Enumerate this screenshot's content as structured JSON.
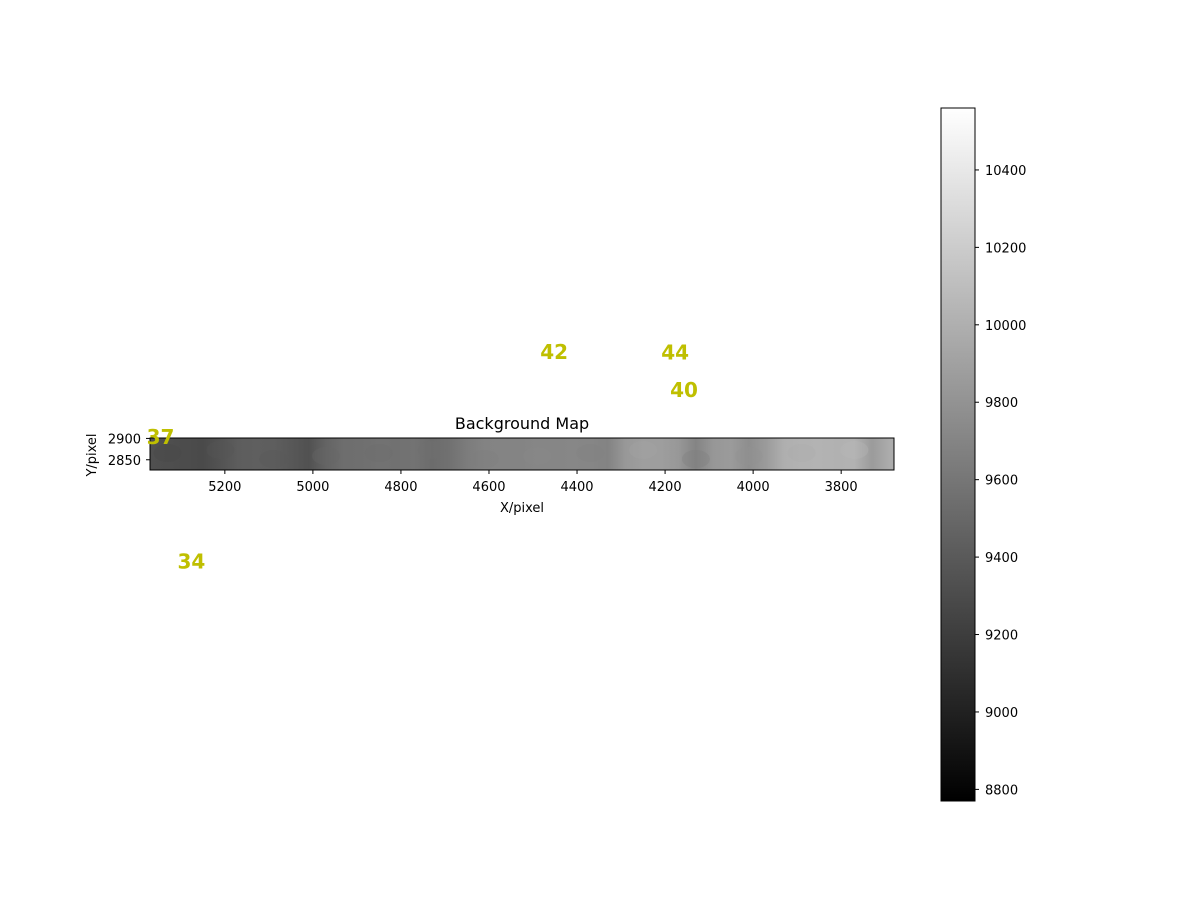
{
  "chart_data": {
    "type": "heatmap",
    "title": "Background Map",
    "xlabel": "X/pixel",
    "ylabel": "Y/pixel",
    "xlim": [
      5370,
      3680
    ],
    "ylim": [
      2826,
      2901
    ],
    "x_ticks": [
      5200,
      5000,
      4800,
      4600,
      4400,
      4200,
      4000,
      3800
    ],
    "y_ticks": [
      2850,
      2900
    ],
    "x_tick_labels": [
      "5200",
      "5000",
      "4800",
      "4600",
      "4400",
      "4200",
      "4000",
      "3800"
    ],
    "y_tick_labels": [
      "2850",
      "2900"
    ],
    "colormap": "gray",
    "background_profile": {
      "x": [
        5370,
        5330,
        5290,
        5250,
        5210,
        5170,
        5130,
        5090,
        5050,
        5010,
        4970,
        4930,
        4890,
        4850,
        4810,
        4770,
        4730,
        4690,
        4650,
        4610,
        4570,
        4530,
        4490,
        4450,
        4410,
        4370,
        4330,
        4290,
        4250,
        4210,
        4170,
        4130,
        4090,
        4050,
        4010,
        3970,
        3930,
        3890,
        3850,
        3810,
        3770,
        3730,
        3690
      ],
      "values": [
        9330,
        9320,
        9300,
        9290,
        9350,
        9420,
        9440,
        9430,
        9390,
        9340,
        9470,
        9540,
        9550,
        9570,
        9560,
        9580,
        9530,
        9560,
        9640,
        9690,
        9700,
        9700,
        9710,
        9710,
        9720,
        9710,
        9690,
        9840,
        9880,
        9880,
        9840,
        9700,
        9830,
        9860,
        9770,
        9860,
        10000,
        10020,
        10030,
        10010,
        10020,
        9860,
        9980
      ]
    },
    "colorbar": {
      "range": [
        8770,
        10560
      ],
      "ticks": [
        8800,
        9000,
        9200,
        9400,
        9600,
        9800,
        10000,
        10200,
        10400
      ],
      "tick_labels": [
        "8800",
        "9000",
        "9200",
        "9400",
        "9600",
        "9800",
        "10000",
        "10200",
        "10400"
      ]
    },
    "source_labels": [
      {
        "text": "42",
        "x": 4452,
        "y": 3102
      },
      {
        "text": "44",
        "x": 4177,
        "y": 3101
      },
      {
        "text": "40",
        "x": 4157,
        "y": 3013
      },
      {
        "text": "37",
        "x": 5346,
        "y": 2903
      },
      {
        "text": "34",
        "x": 5276,
        "y": 2612
      }
    ],
    "label_color": "#bfbf00"
  }
}
